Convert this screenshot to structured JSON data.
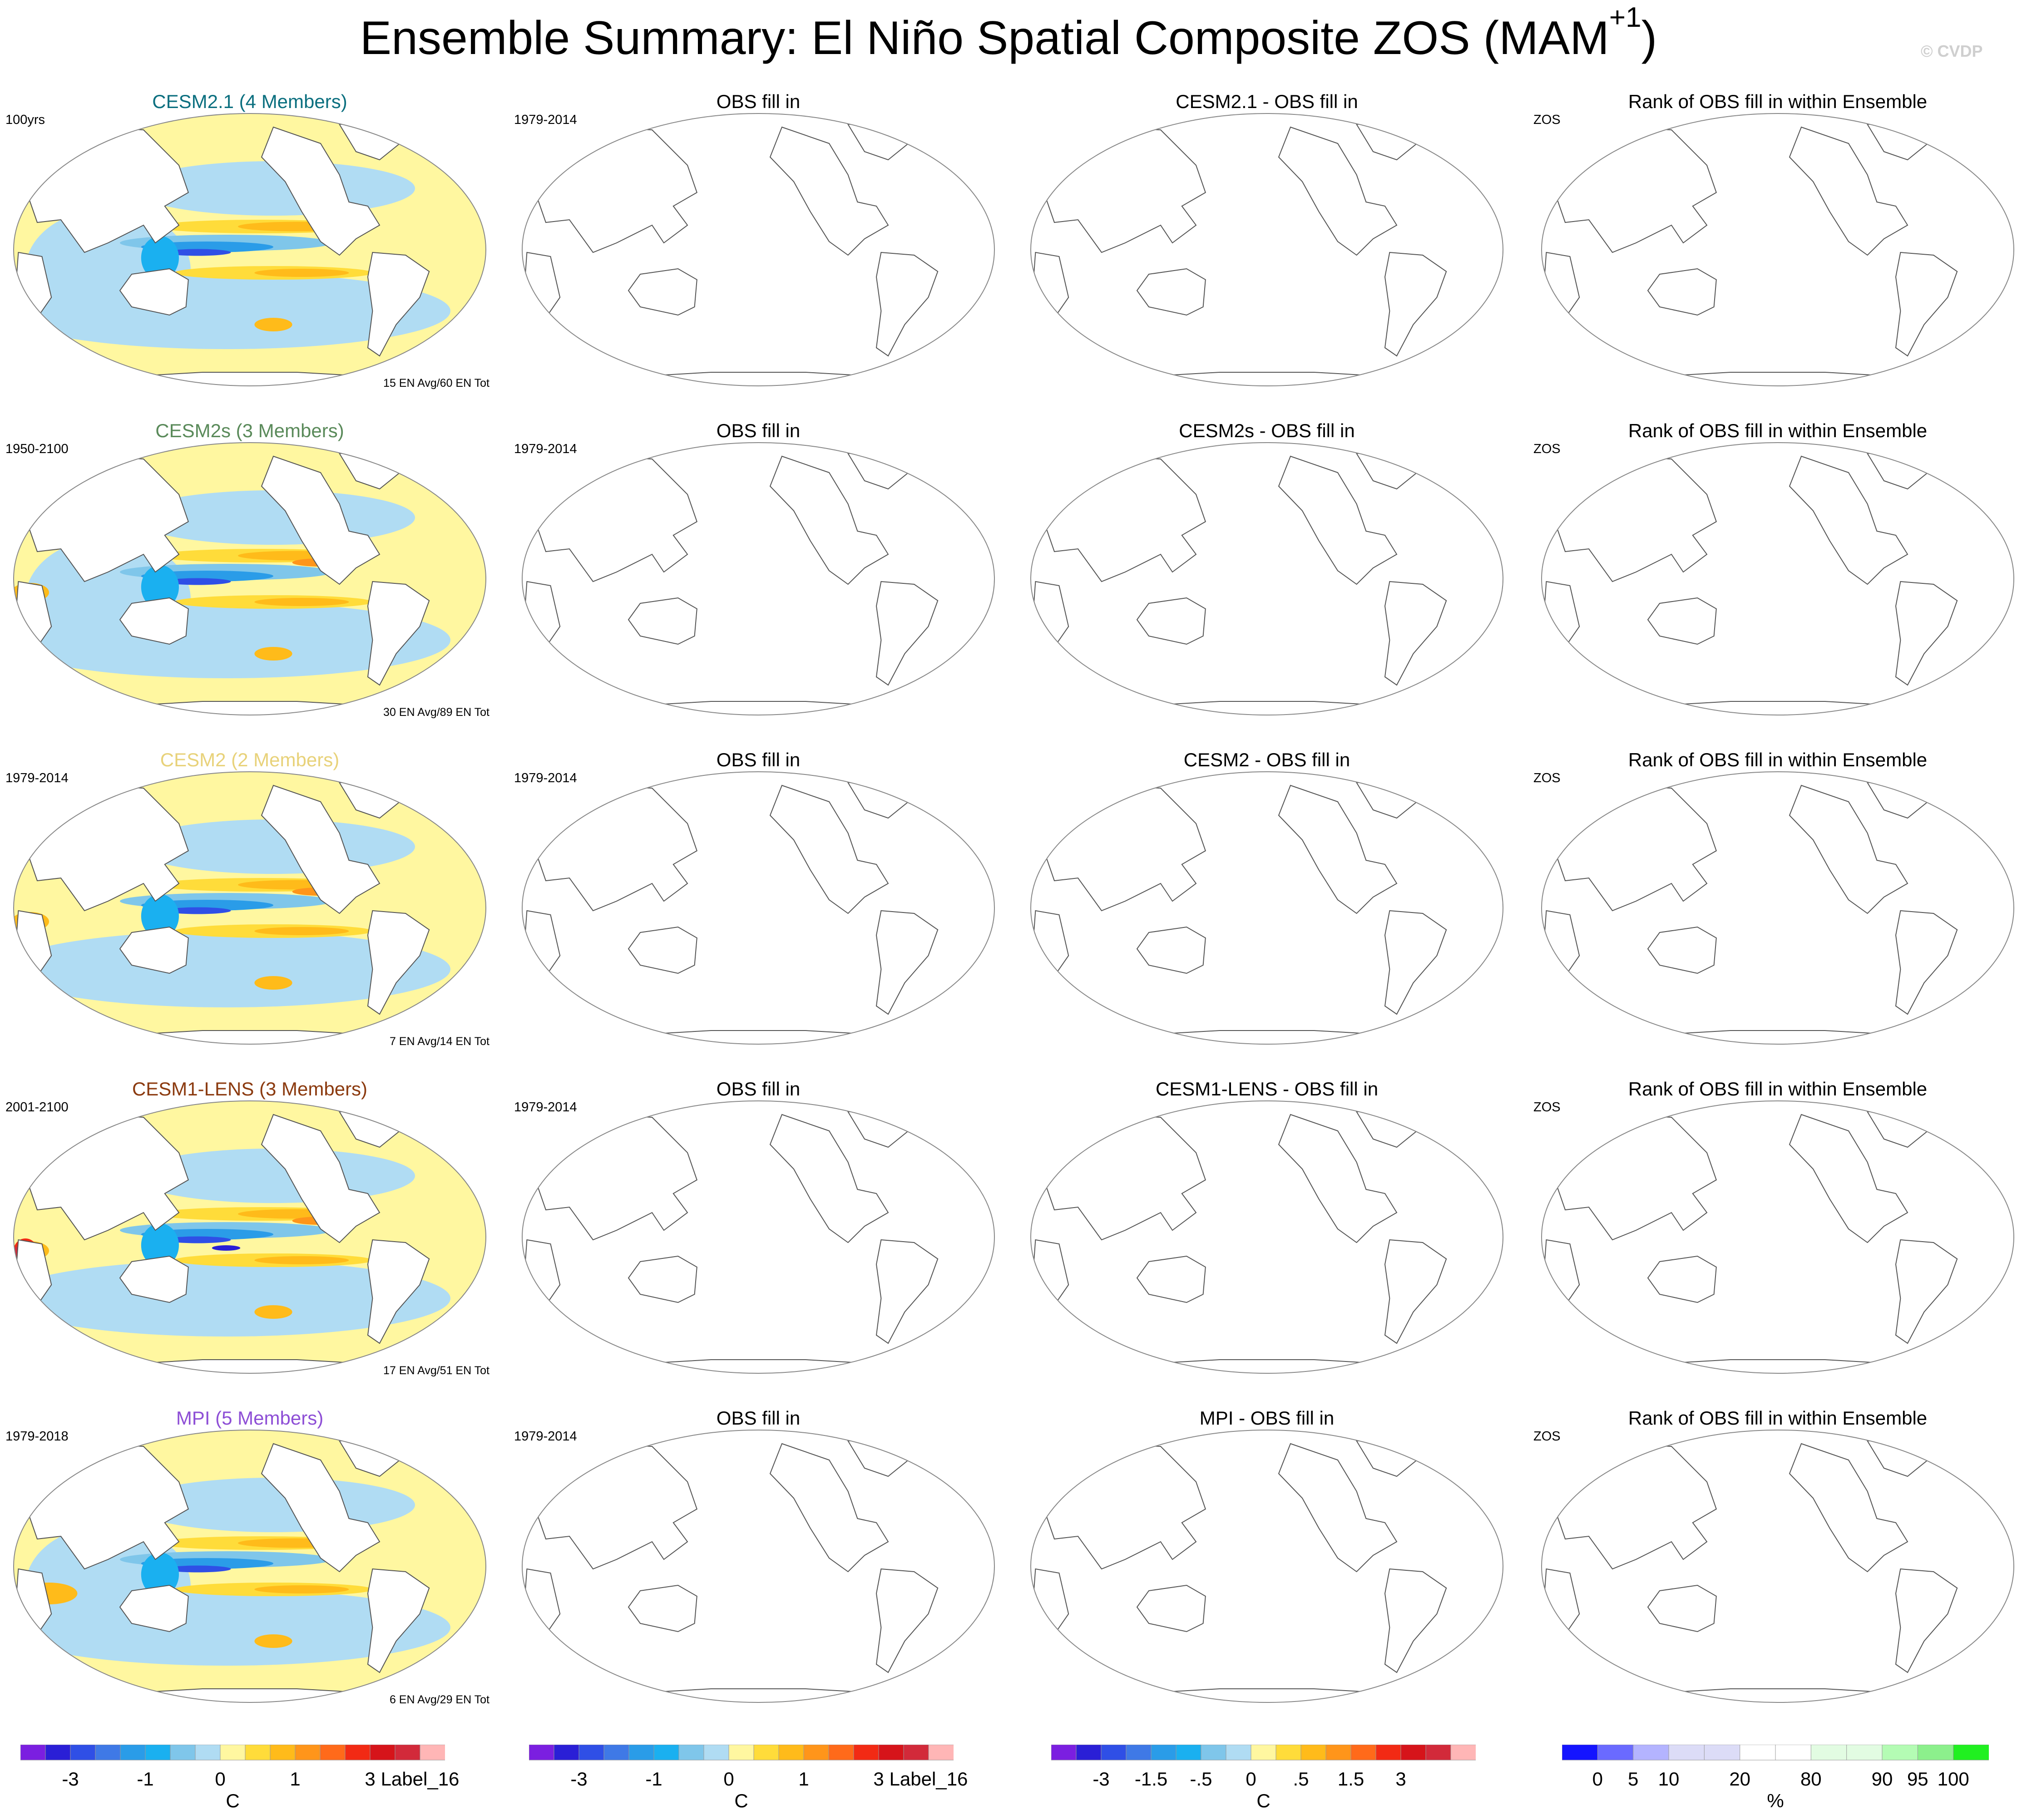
{
  "figure": {
    "title_main": "Ensemble Summary: El Niño Spatial Composite ZOS (MAM",
    "title_sup": "+1",
    "title_close": ")",
    "watermark": "© CVDP"
  },
  "colors": {
    "map_outline": "#888888",
    "coast": "#555555",
    "ocean_base": "#fff7a0",
    "neutral_neg": "#b0dcf3",
    "neutral_pos": "#fff7a0"
  },
  "rows": [
    {
      "model": "CESM2.1",
      "model_title": "CESM2.1 (4 Members)",
      "title_color": "#0b6f7f",
      "period": "100yrs",
      "events": "15 EN Avg/60 EN Tot",
      "diff_title": "CESM2.1 - OBS fill in",
      "pattern": "cool"
    },
    {
      "model": "CESM2s",
      "model_title": "CESM2s (3 Members)",
      "title_color": "#5a8a5a",
      "period": "1950-2100",
      "events": "30 EN Avg/89 EN Tot",
      "diff_title": "CESM2s - OBS fill in",
      "pattern": "mixed"
    },
    {
      "model": "CESM2",
      "model_title": "CESM2 (2 Members)",
      "title_color": "#e8d27a",
      "period": "1979-2014",
      "events": "7 EN Avg/14 EN Tot",
      "diff_title": "CESM2 - OBS fill in",
      "pattern": "warm"
    },
    {
      "model": "CESM1-LENS",
      "model_title": "CESM1-LENS (3 Members)",
      "title_color": "#8b3a0f",
      "period": "2001-2100",
      "events": "17 EN Avg/51 EN Tot",
      "diff_title": "CESM1-LENS - OBS fill in",
      "pattern": "strong"
    },
    {
      "model": "MPI",
      "model_title": "MPI (5 Members)",
      "title_color": "#8e4fd6",
      "period": "1979-2018",
      "events": "6 EN Avg/29 EN Tot",
      "diff_title": "MPI - OBS fill in",
      "pattern": "mpi"
    }
  ],
  "obs": {
    "title": "OBS fill in",
    "period": "1979-2014"
  },
  "rank": {
    "title": "Rank of OBS fill in within Ensemble",
    "variable": "ZOS"
  },
  "labelbars": [
    {
      "name": "model-labelbar",
      "colors": [
        "#7b1fe0",
        "#2a1fd6",
        "#2f4fe6",
        "#3f79e6",
        "#2a9ce8",
        "#1ab0f0",
        "#7fc6ea",
        "#b0dcf3",
        "#fff7a0",
        "#ffdc3a",
        "#ffbb1a",
        "#ff951a",
        "#ff6a1a",
        "#f22a14",
        "#d6141a",
        "#d22a3a",
        "#ffb6b6"
      ],
      "labels": [
        {
          "text": "-3",
          "at": 2
        },
        {
          "text": "-1",
          "at": 5
        },
        {
          "text": "0",
          "at": 8
        },
        {
          "text": "1",
          "at": 11
        },
        {
          "text": "3",
          "at": 14
        },
        {
          "text": "Label_16",
          "at": 16
        }
      ],
      "units": "C"
    },
    {
      "name": "obs-labelbar",
      "colors": [
        "#7b1fe0",
        "#2a1fd6",
        "#2f4fe6",
        "#3f79e6",
        "#2a9ce8",
        "#1ab0f0",
        "#7fc6ea",
        "#b0dcf3",
        "#fff7a0",
        "#ffdc3a",
        "#ffbb1a",
        "#ff951a",
        "#ff6a1a",
        "#f22a14",
        "#d6141a",
        "#d22a3a",
        "#ffb6b6"
      ],
      "labels": [
        {
          "text": "-3",
          "at": 2
        },
        {
          "text": "-1",
          "at": 5
        },
        {
          "text": "0",
          "at": 8
        },
        {
          "text": "1",
          "at": 11
        },
        {
          "text": "3",
          "at": 14
        },
        {
          "text": "Label_16",
          "at": 16
        }
      ],
      "units": "C"
    },
    {
      "name": "diff-labelbar",
      "colors": [
        "#7b1fe0",
        "#2a1fd6",
        "#2f4fe6",
        "#3f79e6",
        "#2a9ce8",
        "#1ab0f0",
        "#7fc6ea",
        "#b0dcf3",
        "#fff7a0",
        "#ffdc3a",
        "#ffbb1a",
        "#ff951a",
        "#ff6a1a",
        "#f22a14",
        "#d6141a",
        "#d22a3a",
        "#ffb6b6"
      ],
      "labels": [
        {
          "text": "-3",
          "at": 2
        },
        {
          "text": "-1.5",
          "at": 4
        },
        {
          "text": "-.5",
          "at": 6
        },
        {
          "text": "0",
          "at": 8
        },
        {
          "text": ".5",
          "at": 10
        },
        {
          "text": "1.5",
          "at": 12
        },
        {
          "text": "3",
          "at": 14
        }
      ],
      "units": "C"
    },
    {
      "name": "rank-labelbar",
      "colors": [
        "#1414ff",
        "#6a6aff",
        "#b4b4ff",
        "#dcdcf7",
        "#dcdcf7",
        "#ffffff",
        "#ffffff",
        "#e2fce2",
        "#e2fce2",
        "#b4fcb4",
        "#8cf08c",
        "#20f020"
      ],
      "labels": [
        {
          "text": "0",
          "at": 1
        },
        {
          "text": "5",
          "at": 2
        },
        {
          "text": "10",
          "at": 3
        },
        {
          "text": "20",
          "at": 5
        },
        {
          "text": "80",
          "at": 7
        },
        {
          "text": "90",
          "at": 9
        },
        {
          "text": "95",
          "at": 10
        },
        {
          "text": "100",
          "at": 11
        }
      ],
      "units": "%"
    }
  ]
}
